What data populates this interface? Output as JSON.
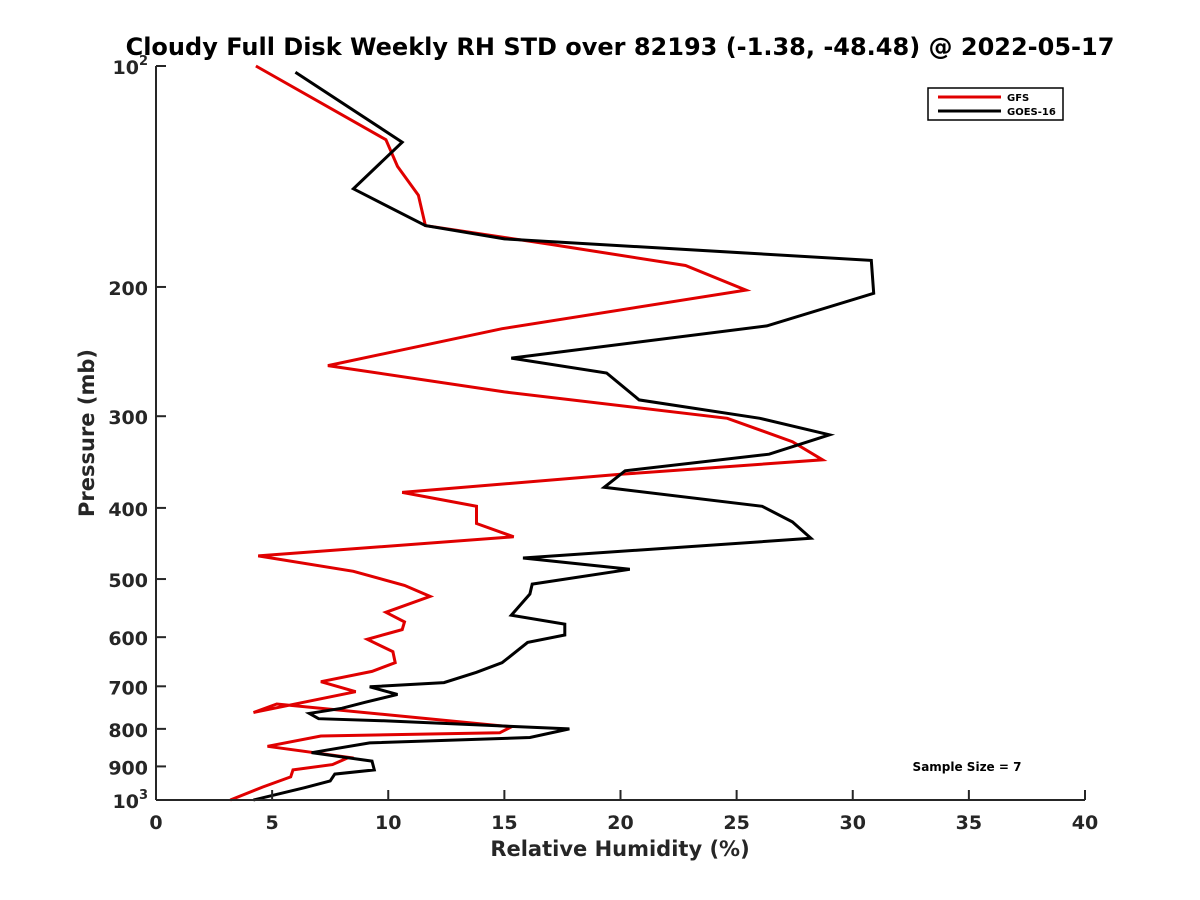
{
  "chart_data": {
    "type": "line",
    "title": "Cloudy Full Disk Weekly RH STD over 82193 (-1.38, -48.48) @ 2022-05-17",
    "xlabel": "Relative Humidity (%)",
    "ylabel": "Pressure (mb)",
    "xlim": [
      0,
      40
    ],
    "ylim": [
      100,
      1000
    ],
    "y_scale": "log",
    "y_reversed": true,
    "grid": false,
    "legend_position": "top-right",
    "x_ticks": [
      "0",
      "5",
      "10",
      "15",
      "20",
      "25",
      "30",
      "35",
      "40"
    ],
    "x_tick_values": [
      0,
      5,
      10,
      15,
      20,
      25,
      30,
      35,
      40
    ],
    "y_ticks": [
      {
        "value": 100,
        "label": "10",
        "sup": "2"
      },
      {
        "value": 200,
        "label": "200",
        "sup": ""
      },
      {
        "value": 300,
        "label": "300",
        "sup": ""
      },
      {
        "value": 400,
        "label": "400",
        "sup": ""
      },
      {
        "value": 500,
        "label": "500",
        "sup": ""
      },
      {
        "value": 600,
        "label": "600",
        "sup": ""
      },
      {
        "value": 700,
        "label": "700",
        "sup": ""
      },
      {
        "value": 800,
        "label": "800",
        "sup": ""
      },
      {
        "value": 900,
        "label": "900",
        "sup": ""
      },
      {
        "value": 1000,
        "label": "10",
        "sup": "3"
      }
    ],
    "annotation": "Sample Size = 7",
    "series": [
      {
        "name": "GFS",
        "color": "#e00000",
        "x": [
          4.3,
          9.9,
          10.4,
          11.3,
          11.6,
          17.0,
          22.8,
          25.4,
          14.9,
          7.4,
          15.0,
          24.6,
          27.4,
          28.7,
          20.0,
          10.6,
          13.8,
          13.8,
          15.4,
          4.4,
          8.5,
          10.7,
          11.8,
          9.9,
          10.7,
          10.6,
          9.1,
          10.2,
          10.3,
          9.3,
          7.1,
          8.6,
          4.2,
          5.2,
          15.3,
          14.8,
          7.1,
          4.8,
          8.3,
          7.6,
          5.9,
          5.8,
          4.6,
          3.2
        ],
        "y": [
          100,
          126,
          137,
          150,
          165,
          175,
          187,
          202,
          228,
          256,
          278,
          302,
          325,
          344,
          360,
          381,
          398,
          420,
          438,
          465,
          488,
          510,
          528,
          555,
          572,
          586,
          604,
          628,
          650,
          668,
          690,
          712,
          760,
          740,
          795,
          810,
          818,
          845,
          875,
          895,
          910,
          930,
          960,
          1000
        ]
      },
      {
        "name": "GOES-16",
        "color": "#000000",
        "x": [
          6.0,
          10.6,
          8.5,
          11.6,
          15.0,
          30.8,
          30.9,
          26.3,
          15.3,
          19.4,
          20.8,
          26.0,
          29.0,
          26.4,
          20.2,
          19.3,
          26.1,
          27.4,
          28.2,
          15.8,
          20.4,
          16.2,
          16.1,
          15.3,
          17.6,
          17.6,
          16.0,
          15.5,
          14.9,
          13.8,
          12.4,
          9.2,
          10.4,
          9.0,
          8.0,
          6.6,
          7.0,
          9.8,
          17.8,
          16.1,
          9.2,
          6.7,
          9.3,
          9.4,
          7.7,
          7.5,
          6.4,
          4.2
        ],
        "y": [
          102,
          127,
          147,
          165,
          172,
          184,
          204,
          226,
          250,
          262,
          285,
          302,
          318,
          338,
          356,
          375,
          398,
          418,
          440,
          468,
          485,
          508,
          524,
          560,
          576,
          596,
          610,
          628,
          650,
          670,
          692,
          701,
          718,
          736,
          750,
          762,
          775,
          780,
          800,
          822,
          836,
          862,
          885,
          910,
          922,
          942,
          962,
          1000
        ]
      }
    ]
  }
}
